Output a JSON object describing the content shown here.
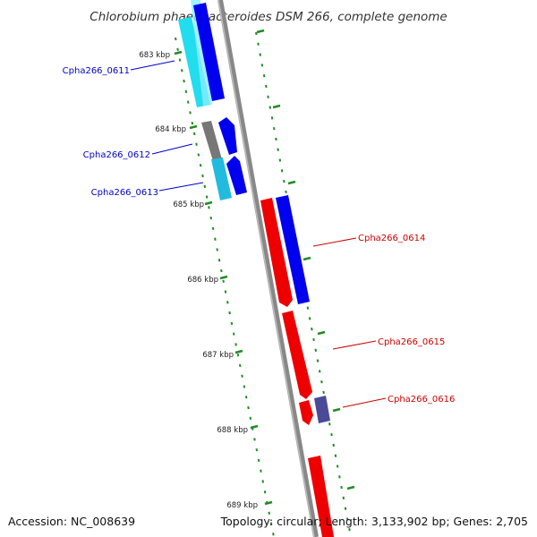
{
  "title": "Chlorobium phaeobacteroides DSM 266, complete genome",
  "footer": {
    "accession": "Accession: NC_008639",
    "topology": "Topology: circular; Length: 3,133,902 bp; Genes: 2,705"
  },
  "ticks": [
    "683 kbp",
    "684 kbp",
    "685 kbp",
    "686 kbp",
    "687 kbp",
    "688 kbp",
    "689 kbp"
  ],
  "genes": [
    {
      "id": "Cpha266_0611",
      "strand": "forward",
      "color": "#0000cc"
    },
    {
      "id": "Cpha266_0612",
      "strand": "forward",
      "color": "#0000cc"
    },
    {
      "id": "Cpha266_0613",
      "strand": "forward",
      "color": "#0000cc"
    },
    {
      "id": "Cpha266_0614",
      "strand": "reverse",
      "color": "#dd0000"
    },
    {
      "id": "Cpha266_0615",
      "strand": "reverse",
      "color": "#dd0000"
    },
    {
      "id": "Cpha266_0616",
      "strand": "reverse",
      "color": "#dd0000"
    }
  ],
  "colors": {
    "forward_cds": "#0000ee",
    "reverse_cds": "#ee0000",
    "cog_cyan": "#22ddee",
    "cog_gray": "#777777",
    "cog_slate": "#4a4a99",
    "backbone": "#888888",
    "tick_marks": "#228b22"
  }
}
